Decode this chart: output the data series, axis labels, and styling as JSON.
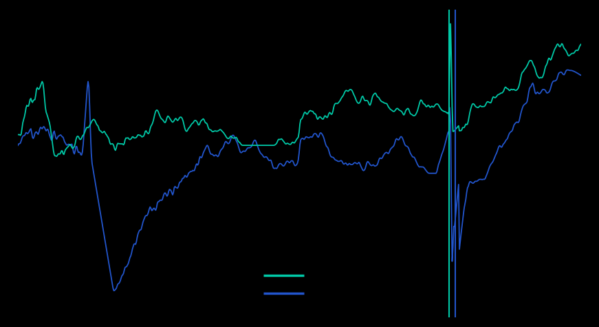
{
  "background_color": "#000000",
  "teal_color": "#00c9a7",
  "blue_color": "#2255cc",
  "line_width": 1.3,
  "figsize": [
    8.71,
    4.75
  ],
  "dpi": 100
}
